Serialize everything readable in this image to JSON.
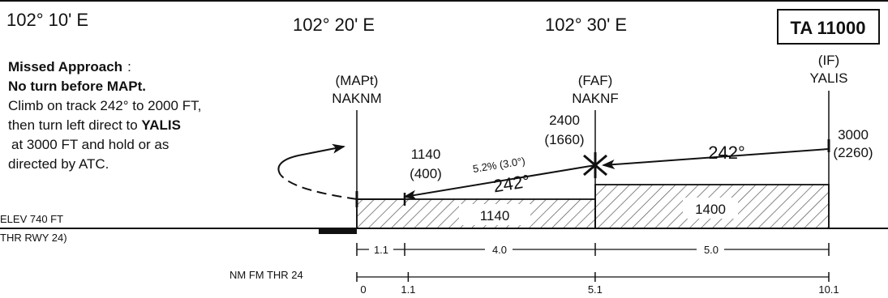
{
  "header": {
    "lon_1": "102° 10' E",
    "lon_2": "102° 20' E",
    "lon_3": "102° 30' E",
    "transition_altitude": "TA 11000"
  },
  "missed_approach": {
    "title": "Missed Approach",
    "colon": ":",
    "line_1": "No turn before MAPt.",
    "line_2": "Climb on track 242° to 2000 FT,",
    "line_3_prefix": "then turn left direct to ",
    "line_3_fix": "YALIS",
    "line_4": "at 3000 FT and hold or as",
    "line_5": "directed by ATC."
  },
  "fixes": {
    "mapt": {
      "role": "(MAPt)",
      "name": "NAKNM"
    },
    "faf": {
      "role": "(FAF)",
      "name": "NAKNF",
      "alt": "2400",
      "alt_height": "(1660)"
    },
    "if": {
      "role": "(IF)",
      "name": "YALIS",
      "alt": "3000",
      "alt_height": "(2260)"
    }
  },
  "stepdown": {
    "alt": "1140",
    "alt_height": "(400)"
  },
  "glidepath": {
    "gradient": "5.2% (3.0°)"
  },
  "tracks": {
    "final": "242°",
    "intermediate": "242°"
  },
  "msa": {
    "final_segment": "1140",
    "intermediate_segment": "1400"
  },
  "threshold": {
    "elev": "ELEV 740 FT",
    "rwy": "THR RWY 24)"
  },
  "segment_distances": [
    "1.1",
    "4.0",
    "5.0"
  ],
  "distance_scale": {
    "label": "NM FM THR 24",
    "ticks": [
      {
        "label": "0",
        "value": 0
      },
      {
        "label": "1.1",
        "value": 1.1
      },
      {
        "label": "5.1",
        "value": 5.1
      },
      {
        "label": "10.1",
        "value": 10.1
      }
    ]
  },
  "colors": {
    "ink": "#111111",
    "hatch": "#555555"
  }
}
